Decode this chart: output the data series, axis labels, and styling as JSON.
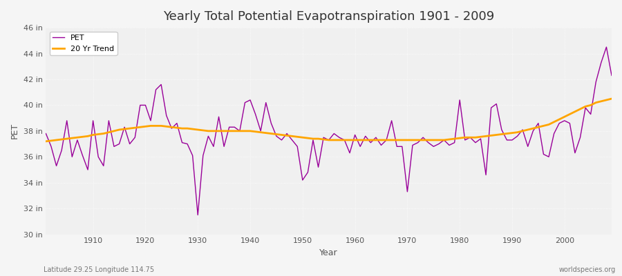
{
  "title": "Yearly Total Potential Evapotranspiration 1901 - 2009",
  "xlabel": "Year",
  "ylabel": "PET",
  "footer_left": "Latitude 29.25 Longitude 114.75",
  "footer_right": "worldspecies.org",
  "pet_color": "#990099",
  "trend_color": "#FFA500",
  "bg_color": "#f5f5f5",
  "plot_bg_color": "#f0f0f0",
  "ylim": [
    30,
    46
  ],
  "xlim": [
    1901,
    2009
  ],
  "yticks": [
    30,
    32,
    34,
    36,
    38,
    40,
    42,
    44,
    46
  ],
  "ytick_labels": [
    "30 in",
    "32 in",
    "34 in",
    "36 in",
    "38 in",
    "40 in",
    "42 in",
    "44 in",
    "46 in"
  ],
  "xticks": [
    1910,
    1920,
    1930,
    1940,
    1950,
    1960,
    1970,
    1980,
    1990,
    2000
  ],
  "years": [
    1901,
    1902,
    1903,
    1904,
    1905,
    1906,
    1907,
    1908,
    1909,
    1910,
    1911,
    1912,
    1913,
    1914,
    1915,
    1916,
    1917,
    1918,
    1919,
    1920,
    1921,
    1922,
    1923,
    1924,
    1925,
    1926,
    1927,
    1928,
    1929,
    1930,
    1931,
    1932,
    1933,
    1934,
    1935,
    1936,
    1937,
    1938,
    1939,
    1940,
    1941,
    1942,
    1943,
    1944,
    1945,
    1946,
    1947,
    1948,
    1949,
    1950,
    1951,
    1952,
    1953,
    1954,
    1955,
    1956,
    1957,
    1958,
    1959,
    1960,
    1961,
    1962,
    1963,
    1964,
    1965,
    1966,
    1967,
    1968,
    1969,
    1970,
    1971,
    1972,
    1973,
    1974,
    1975,
    1976,
    1977,
    1978,
    1979,
    1980,
    1981,
    1982,
    1983,
    1984,
    1985,
    1986,
    1987,
    1988,
    1989,
    1990,
    1991,
    1992,
    1993,
    1994,
    1995,
    1996,
    1997,
    1998,
    1999,
    2000,
    2001,
    2002,
    2003,
    2004,
    2005,
    2006,
    2007,
    2008,
    2009
  ],
  "pet": [
    37.8,
    36.8,
    35.3,
    36.5,
    38.8,
    36.0,
    37.3,
    36.1,
    35.0,
    38.8,
    36.0,
    35.3,
    38.8,
    36.8,
    37.0,
    38.3,
    37.0,
    37.5,
    40.0,
    40.0,
    38.8,
    41.2,
    41.6,
    39.2,
    38.2,
    38.6,
    37.1,
    37.0,
    36.1,
    31.5,
    36.1,
    37.6,
    36.8,
    39.1,
    36.8,
    38.3,
    38.3,
    38.0,
    40.2,
    40.4,
    39.3,
    38.0,
    40.2,
    38.6,
    37.6,
    37.3,
    37.8,
    37.3,
    36.8,
    34.2,
    34.8,
    37.3,
    35.2,
    37.5,
    37.3,
    37.8,
    37.5,
    37.3,
    36.3,
    37.7,
    36.8,
    37.6,
    37.1,
    37.5,
    36.9,
    37.3,
    38.8,
    36.8,
    36.8,
    33.3,
    36.9,
    37.1,
    37.5,
    37.1,
    36.8,
    37.0,
    37.3,
    36.9,
    37.1,
    40.4,
    37.3,
    37.5,
    37.1,
    37.4,
    34.6,
    39.8,
    40.1,
    38.1,
    37.3,
    37.3,
    37.6,
    38.1,
    36.8,
    38.0,
    38.6,
    36.2,
    36.0,
    37.8,
    38.6,
    38.8,
    38.6,
    36.3,
    37.5,
    39.8,
    39.3,
    41.8,
    43.3,
    44.5,
    42.3
  ],
  "trend_years": [
    1901,
    1902,
    1903,
    1904,
    1905,
    1906,
    1907,
    1908,
    1909,
    1910,
    1911,
    1912,
    1913,
    1914,
    1915,
    1916,
    1917,
    1918,
    1919,
    1920,
    1921,
    1922,
    1923,
    1924,
    1925,
    1926,
    1927,
    1928,
    1929,
    1930,
    1931,
    1932,
    1933,
    1934,
    1935,
    1936,
    1937,
    1938,
    1939,
    1940,
    1941,
    1942,
    1943,
    1944,
    1945,
    1946,
    1947,
    1948,
    1949,
    1950,
    1951,
    1952,
    1953,
    1954,
    1955,
    1956,
    1957,
    1958,
    1959,
    1960,
    1961,
    1962,
    1963,
    1964,
    1965,
    1966,
    1967,
    1968,
    1969,
    1970,
    1971,
    1972,
    1973,
    1974,
    1975,
    1976,
    1977,
    1978,
    1979,
    1980,
    1981,
    1982,
    1983,
    1984,
    1985,
    1986,
    1987,
    1988,
    1989,
    1990,
    1991,
    1992,
    1993,
    1994,
    1995,
    1996,
    1997,
    1998,
    1999,
    2000,
    2001,
    2002,
    2003,
    2004,
    2005,
    2006,
    2007,
    2008,
    2009
  ],
  "trend": [
    37.2,
    37.25,
    37.3,
    37.35,
    37.4,
    37.45,
    37.5,
    37.55,
    37.6,
    37.7,
    37.75,
    37.8,
    37.9,
    38.0,
    38.1,
    38.15,
    38.2,
    38.25,
    38.3,
    38.35,
    38.4,
    38.4,
    38.4,
    38.35,
    38.3,
    38.25,
    38.2,
    38.2,
    38.15,
    38.1,
    38.05,
    38.0,
    38.0,
    38.0,
    38.0,
    38.0,
    38.0,
    38.0,
    38.0,
    38.0,
    37.95,
    37.9,
    37.85,
    37.8,
    37.75,
    37.7,
    37.65,
    37.6,
    37.55,
    37.5,
    37.45,
    37.4,
    37.4,
    37.35,
    37.3,
    37.3,
    37.3,
    37.3,
    37.3,
    37.3,
    37.3,
    37.3,
    37.3,
    37.3,
    37.3,
    37.3,
    37.3,
    37.3,
    37.3,
    37.3,
    37.3,
    37.3,
    37.3,
    37.3,
    37.3,
    37.3,
    37.3,
    37.35,
    37.4,
    37.45,
    37.5,
    37.5,
    37.5,
    37.55,
    37.6,
    37.65,
    37.7,
    37.75,
    37.8,
    37.85,
    37.9,
    38.0,
    38.1,
    38.2,
    38.3,
    38.4,
    38.5,
    38.7,
    38.9,
    39.1,
    39.3,
    39.5,
    39.7,
    39.9,
    40.0,
    40.2,
    40.3,
    40.4,
    40.5
  ]
}
